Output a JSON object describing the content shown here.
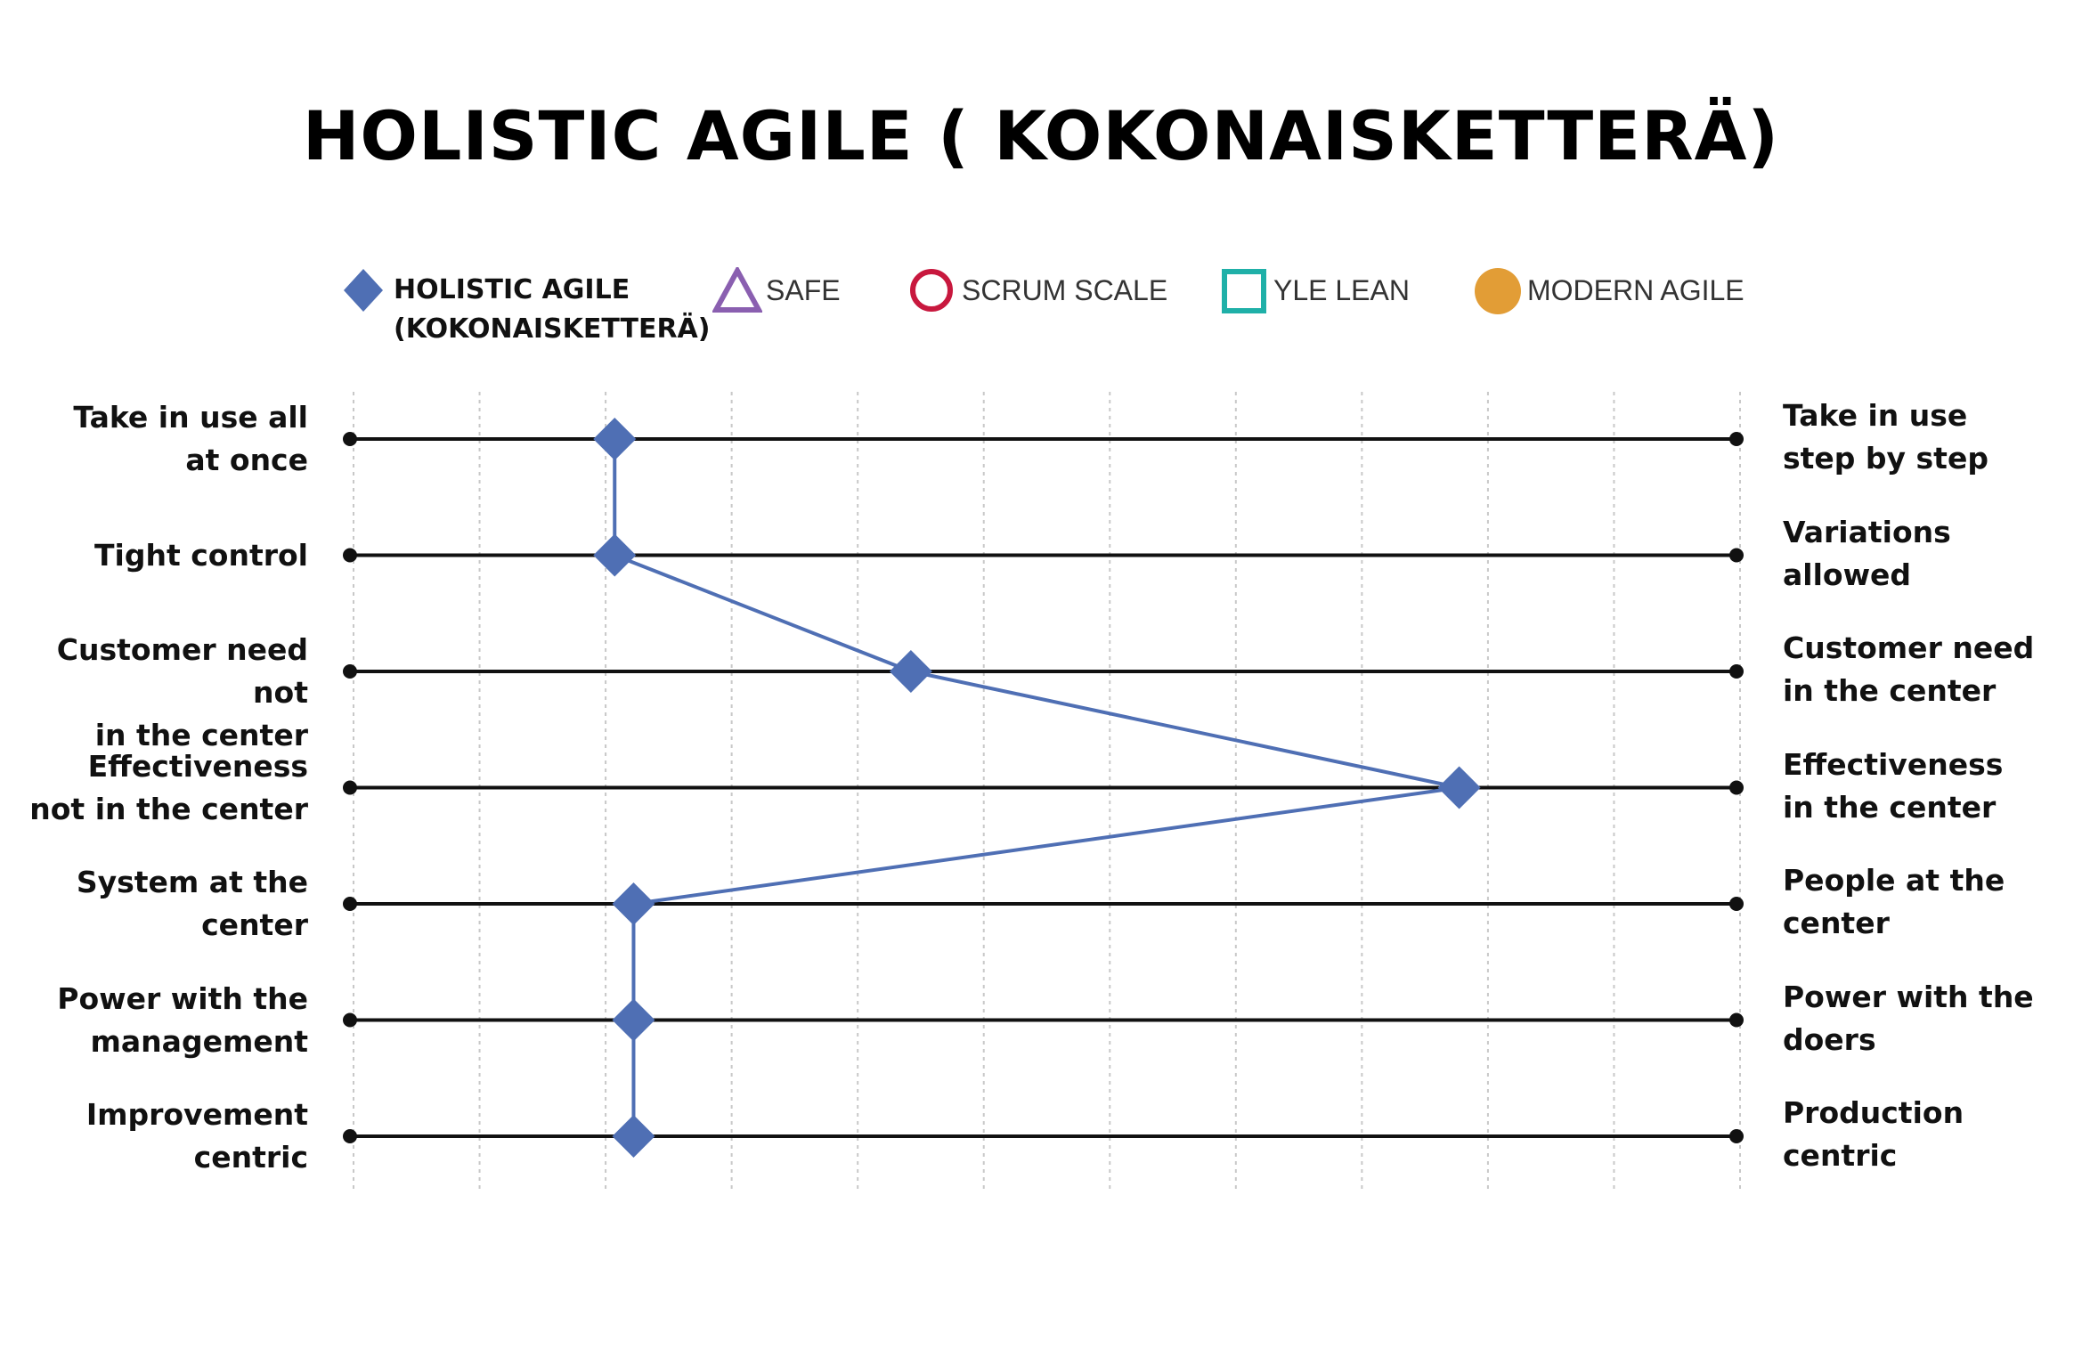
{
  "title": "HOLISTIC AGILE ( KOKONAISKETTERÄ)",
  "colors": {
    "holistic": "#4f6fb4",
    "safe": "#8a5fb0",
    "scrum": "#c8183e",
    "yle": "#1fb0a8",
    "modern": "#e29d36",
    "axis": "#111111",
    "grid": "#c8c8c8"
  },
  "legend": [
    {
      "label": "HOLISTIC AGILE\n(KOKONAISKETTERÄ)",
      "marker": "diamond",
      "color": "#4f6fb4"
    },
    {
      "label": "SAFE",
      "marker": "triangle-outline",
      "color": "#8a5fb0"
    },
    {
      "label": "SCRUM SCALE",
      "marker": "circle-outline",
      "color": "#c8183e"
    },
    {
      "label": "YLE LEAN",
      "marker": "square-outline",
      "color": "#1fb0a8"
    },
    {
      "label": "MODERN AGILE",
      "marker": "circle-filled",
      "color": "#e29d36"
    }
  ],
  "chart_data": {
    "type": "line",
    "xlim": [
      0,
      11
    ],
    "grid": true,
    "rows": [
      {
        "left": "Take in use all\nat once",
        "right": "Take in use\nstep by step"
      },
      {
        "left": "Tight control",
        "right": "Variations\nallowed"
      },
      {
        "left": "Customer need not\nin the center",
        "right": "Customer need\nin the center"
      },
      {
        "left": "Effectiveness\nnot in the center",
        "right": "Effectiveness\nin the center"
      },
      {
        "left": "System at the\ncenter",
        "right": "People at the\ncenter"
      },
      {
        "left": "Power with the\nmanagement",
        "right": "Power with the\ndoers"
      },
      {
        "left": "Improvement\ncentric",
        "right": "Production\ncentric"
      }
    ],
    "series": [
      {
        "name": "HOLISTIC AGILE\n(KOKONAISKETTERÄ)",
        "values": [
          2.1,
          2.1,
          4.45,
          8.8,
          2.25,
          2.25,
          2.25
        ]
      }
    ]
  }
}
